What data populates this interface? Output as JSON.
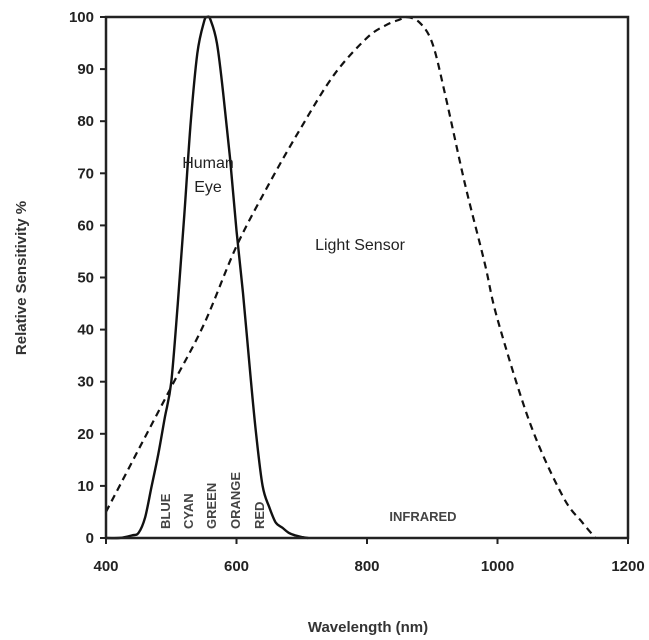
{
  "chart_data": {
    "type": "line",
    "title": "",
    "xlabel": "Wavelength (nm)",
    "ylabel": "Relative Sensitivity %",
    "xlim": [
      400,
      1200
    ],
    "ylim": [
      0,
      100
    ],
    "x_ticks": [
      400,
      600,
      800,
      1000,
      1200
    ],
    "y_ticks": [
      0,
      10,
      20,
      30,
      40,
      50,
      60,
      70,
      80,
      90,
      100
    ],
    "grid": false,
    "legend": "none",
    "series": [
      {
        "name": "Human Eye",
        "style": "solid",
        "color": "#111111",
        "x": [
          400,
          420,
          440,
          450,
          460,
          470,
          480,
          490,
          500,
          510,
          520,
          530,
          540,
          550,
          555,
          560,
          570,
          580,
          590,
          600,
          610,
          620,
          630,
          640,
          650,
          660,
          670,
          680,
          690,
          700,
          710
        ],
        "y": [
          0,
          0,
          0.5,
          1,
          4,
          10,
          16,
          23,
          30,
          45,
          62,
          80,
          93,
          99,
          100,
          99.5,
          95,
          85,
          73,
          59,
          47,
          33,
          20,
          10,
          6,
          3,
          2,
          1,
          0.5,
          0.2,
          0
        ]
      },
      {
        "name": "Light Sensor",
        "style": "dashed",
        "color": "#111111",
        "x": [
          400,
          450,
          500,
          550,
          600,
          650,
          700,
          750,
          800,
          830,
          850,
          860,
          880,
          900,
          920,
          950,
          980,
          1000,
          1050,
          1100,
          1130,
          1150
        ],
        "y": [
          5,
          17,
          29,
          41,
          56,
          68,
          79,
          89,
          96,
          98.5,
          99.5,
          100,
          99,
          95,
          85,
          68,
          53,
          42,
          22,
          8,
          3,
          0
        ]
      }
    ],
    "annotations": {
      "human_eye": [
        "Human",
        "Eye"
      ],
      "light_sensor": "Light Sensor",
      "infrared": "INFRARED"
    },
    "color_bands": [
      "BLUE",
      "CYAN",
      "GREEN",
      "ORANGE",
      "RED"
    ]
  }
}
